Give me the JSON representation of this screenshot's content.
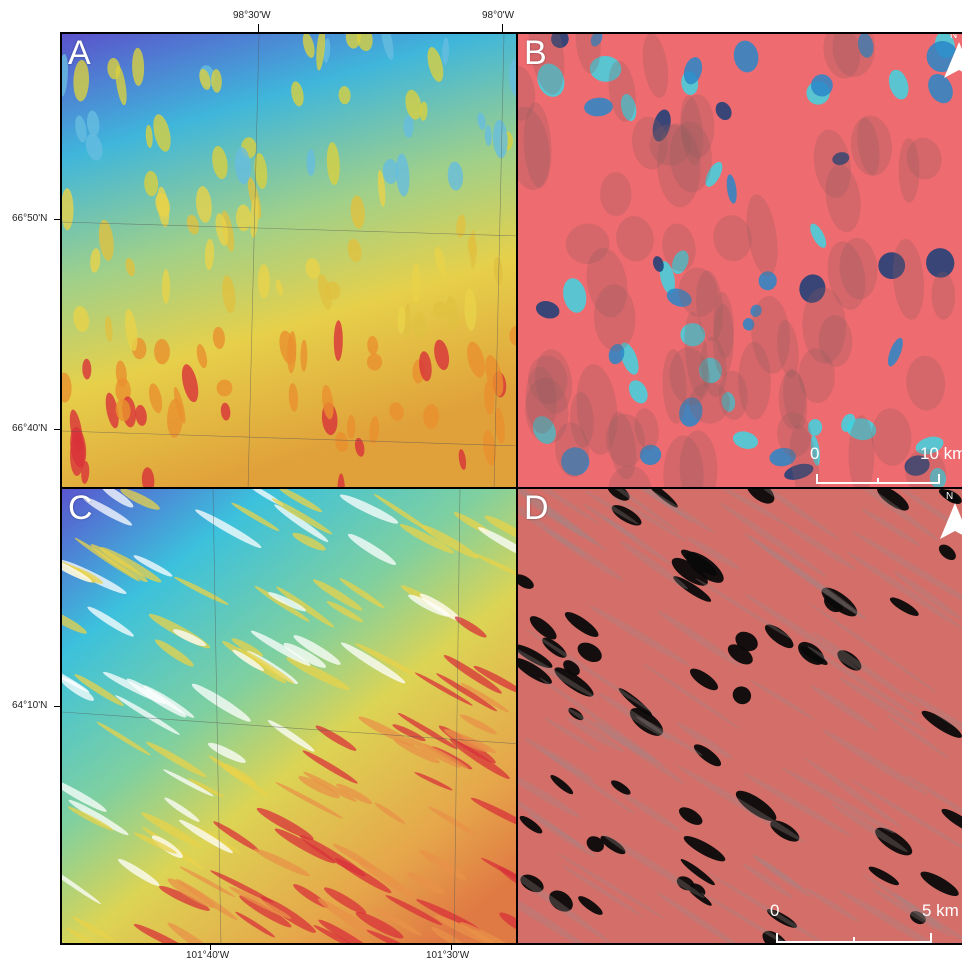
{
  "axis_labels": {
    "top": [
      "98°30'W",
      "98°0'W"
    ],
    "bottom": [
      "101°40'W",
      "101°30'W"
    ],
    "left": [
      "66°50'N",
      "66°40'N",
      "64°10'N"
    ]
  },
  "panels": [
    {
      "id": "A",
      "letter": "A",
      "kind": "dem",
      "palette": "blue-cyan-yellow-red"
    },
    {
      "id": "B",
      "letter": "B",
      "kind": "false-color",
      "palette": "red-cyan-blue",
      "north_label": "N",
      "scale": {
        "start": "0",
        "end": "10 km"
      }
    },
    {
      "id": "C",
      "letter": "C",
      "kind": "dem",
      "palette": "blue-cyan-yellow-red"
    },
    {
      "id": "D",
      "letter": "D",
      "kind": "false-color",
      "palette": "red-black",
      "north_label": "N",
      "scale": {
        "start": "0",
        "end": "5 km"
      }
    }
  ],
  "colors": {
    "dem_low": "#5a4fc8",
    "dem_mid": "#2ec4d6",
    "dem_high_mid": "#e8d24a",
    "dem_high": "#d8323a",
    "b_land": "#ef6f74",
    "b_lake_light": "#3fd4e0",
    "b_lake_dark": "#1a3e78",
    "d_land": "#d9746c",
    "d_lake": "#0a0a0a"
  }
}
